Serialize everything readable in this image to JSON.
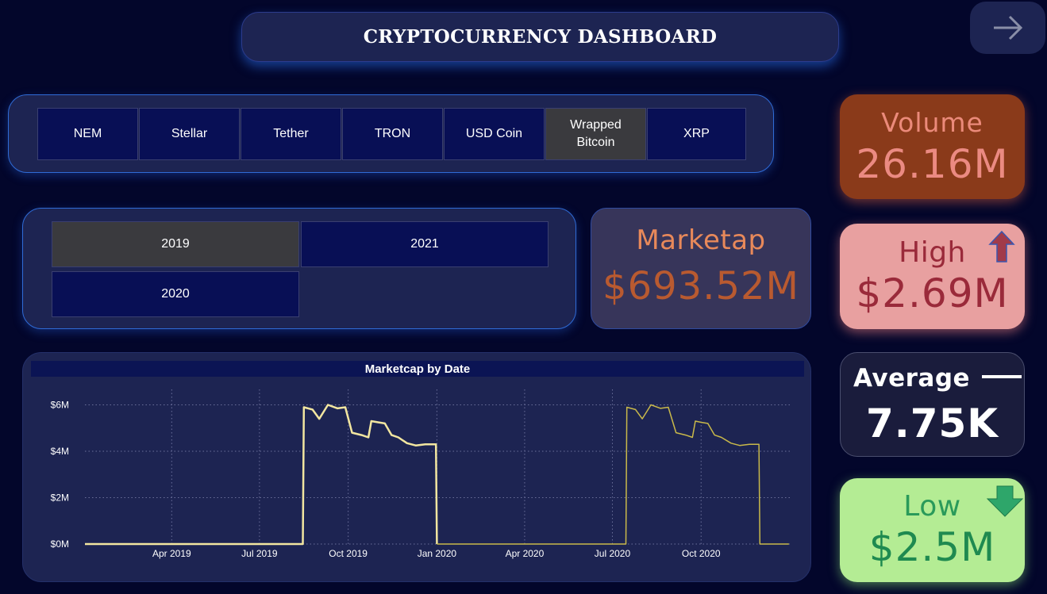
{
  "header": {
    "title": "CRYPTOCURRENCY DASHBOARD",
    "nav_icon": "arrow-right-icon"
  },
  "coin_slicer": {
    "items": [
      {
        "label": "NEM",
        "selected": false
      },
      {
        "label": "Stellar",
        "selected": false
      },
      {
        "label": "Tether",
        "selected": false
      },
      {
        "label": "TRON",
        "selected": false
      },
      {
        "label": "USD Coin",
        "selected": false
      },
      {
        "label": "Wrapped Bitcoin",
        "selected": true
      },
      {
        "label": "XRP",
        "selected": false
      }
    ]
  },
  "year_slicer": {
    "items": [
      {
        "label": "2019",
        "selected": true
      },
      {
        "label": "2021",
        "selected": false
      },
      {
        "label": "2020",
        "selected": false
      }
    ]
  },
  "cards": {
    "marketcap": {
      "label": "Marketap",
      "value": "$693.52M"
    },
    "volume": {
      "label": "Volume",
      "value": "26.16M"
    },
    "high": {
      "label": "High",
      "value": "$2.69M",
      "icon": "arrow-up-icon"
    },
    "average": {
      "label": "Average",
      "value": "7.75K",
      "icon": "dash-icon"
    },
    "low": {
      "label": "Low",
      "value": "$2.5M",
      "icon": "arrow-down-icon"
    }
  },
  "colors": {
    "background": "#03062b",
    "panel": "#1d2452",
    "slicer_button": "#080f55",
    "slicer_selected": "#3a3a3e",
    "line_2019": "#f2e6a0",
    "line_2020": "#c9b94a"
  },
  "chart_data": {
    "type": "line",
    "title": "Marketcap by Date",
    "xlabel": "",
    "ylabel": "",
    "x_ticks": [
      "Apr 2019",
      "Jul 2019",
      "Oct 2019",
      "Jan 2020",
      "Apr 2020",
      "Jul 2020",
      "Oct 2020"
    ],
    "y_ticks": [
      "$0M",
      "$2M",
      "$4M",
      "$6M"
    ],
    "ylim": [
      0,
      6.6
    ],
    "y_unit": "millions USD",
    "grid": true,
    "series": [
      {
        "color": "#f2e6a0",
        "x": [
          "2019-01-01",
          "2019-08-15",
          "2019-08-16",
          "2019-08-25",
          "2019-09-01",
          "2019-09-10",
          "2019-09-20",
          "2019-09-28",
          "2019-10-05",
          "2019-10-15",
          "2019-10-22",
          "2019-10-25",
          "2019-11-01",
          "2019-11-08",
          "2019-11-15",
          "2019-11-22",
          "2019-12-01",
          "2019-12-10",
          "2019-12-20",
          "2019-12-31",
          "2020-01-01"
        ],
        "values": [
          0,
          0,
          5.9,
          5.8,
          5.4,
          6.0,
          5.85,
          5.9,
          4.8,
          4.7,
          4.6,
          5.3,
          5.25,
          5.2,
          4.7,
          4.6,
          4.35,
          4.25,
          4.3,
          4.3,
          0
        ]
      },
      {
        "color": "#c9b94a",
        "x": [
          "2020-01-01",
          "2020-07-15",
          "2020-07-16",
          "2020-07-25",
          "2020-08-01",
          "2020-08-10",
          "2020-08-20",
          "2020-08-28",
          "2020-09-05",
          "2020-09-15",
          "2020-09-22",
          "2020-09-25",
          "2020-10-01",
          "2020-10-08",
          "2020-10-15",
          "2020-10-22",
          "2020-11-01",
          "2020-11-10",
          "2020-11-20",
          "2020-11-30",
          "2020-12-01",
          "2020-12-31"
        ],
        "values": [
          0,
          0,
          5.9,
          5.8,
          5.4,
          6.0,
          5.85,
          5.9,
          4.8,
          4.7,
          4.6,
          5.3,
          5.25,
          5.2,
          4.7,
          4.6,
          4.35,
          4.25,
          4.3,
          4.3,
          0,
          0
        ]
      }
    ]
  }
}
